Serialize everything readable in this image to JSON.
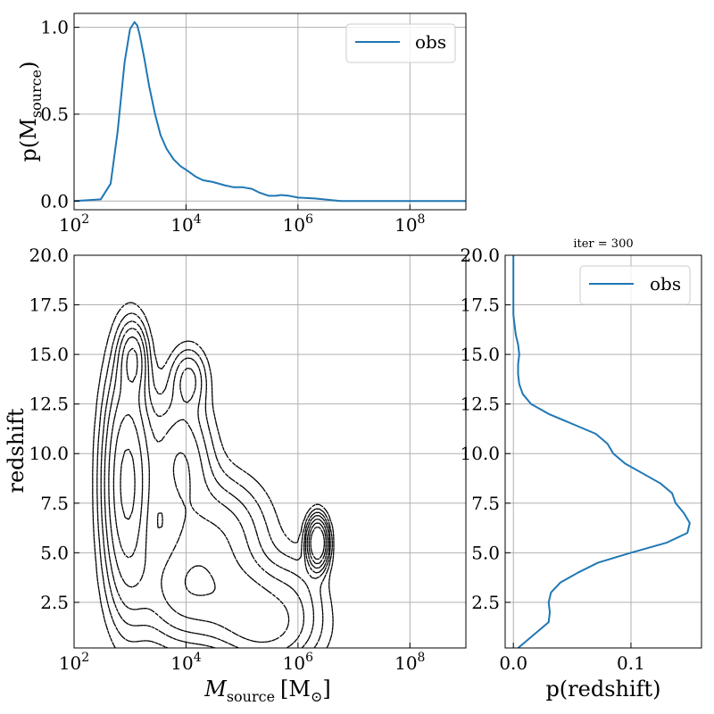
{
  "figure": {
    "title": "iter = 300"
  },
  "chart_data": [
    {
      "id": "top",
      "type": "line",
      "title": "",
      "xlabel": "",
      "ylabel": "p(M",
      "ylabel_sub": "source",
      "ylabel_close": ")",
      "xscale": "log",
      "xlim": [
        100,
        1000000000
      ],
      "ylim": [
        -0.05,
        1.08
      ],
      "xticks": [
        {
          "value": 100,
          "base": "10",
          "exp": "2"
        },
        {
          "value": 10000,
          "base": "10",
          "exp": "4"
        },
        {
          "value": 1000000,
          "base": "10",
          "exp": "6"
        },
        {
          "value": 100000000,
          "base": "10",
          "exp": "8"
        }
      ],
      "yticks": [
        {
          "value": 0.0,
          "label": "0.0"
        },
        {
          "value": 0.5,
          "label": "0.5"
        },
        {
          "value": 1.0,
          "label": "1.0"
        }
      ],
      "grid": true,
      "legend": {
        "position": "top-right",
        "entries": [
          "obs"
        ]
      },
      "series": [
        {
          "name": "obs",
          "color": "#1f77b4",
          "x": [
            100,
            300,
            450,
            600,
            800,
            1000,
            1200,
            1350,
            1500,
            1800,
            2200,
            2800,
            3500,
            4500,
            6000,
            8000,
            10000,
            15000,
            20000,
            30000,
            50000,
            70000,
            100000,
            150000,
            200000,
            300000,
            400000,
            500000,
            700000,
            1000000,
            2000000,
            4000000,
            6000000,
            10000000,
            100000000,
            1000000000
          ],
          "y": [
            0.0,
            0.01,
            0.1,
            0.4,
            0.8,
            0.99,
            1.03,
            1.01,
            0.95,
            0.82,
            0.66,
            0.5,
            0.38,
            0.3,
            0.24,
            0.2,
            0.18,
            0.14,
            0.12,
            0.11,
            0.09,
            0.08,
            0.08,
            0.07,
            0.05,
            0.03,
            0.03,
            0.035,
            0.03,
            0.02,
            0.015,
            0.005,
            0.0,
            0.0,
            0.0,
            0.0
          ]
        }
      ]
    },
    {
      "id": "main",
      "type": "contour",
      "xlabel": "M",
      "xlabel_sub": "source",
      "xlabel_unit": "[M",
      "xlabel_unit_sub": "⊙",
      "xlabel_close": "]",
      "ylabel": "redshift",
      "xscale": "log",
      "xlim": [
        100,
        1000000000
      ],
      "ylim": [
        0.2,
        20.0
      ],
      "xticks": [
        {
          "value": 100,
          "base": "10",
          "exp": "2"
        },
        {
          "value": 10000,
          "base": "10",
          "exp": "4"
        },
        {
          "value": 1000000,
          "base": "10",
          "exp": "6"
        },
        {
          "value": 100000000,
          "base": "10",
          "exp": "8"
        }
      ],
      "yticks": [
        {
          "value": 2.5,
          "label": "2.5"
        },
        {
          "value": 5.0,
          "label": "5.0"
        },
        {
          "value": 7.5,
          "label": "7.5"
        },
        {
          "value": 10.0,
          "label": "10.0"
        },
        {
          "value": 12.5,
          "label": "12.5"
        },
        {
          "value": 15.0,
          "label": "15.0"
        },
        {
          "value": 17.5,
          "label": "17.5"
        },
        {
          "value": 20.0,
          "label": "20.0"
        }
      ],
      "grid": true,
      "line_style": "dashed",
      "line_color": "#000000",
      "blobs": [
        {
          "cx": 2.95,
          "cy": 8.5,
          "sx": 0.26,
          "sy": 3.6,
          "w": 1.0
        },
        {
          "cx": 3.05,
          "cy": 14.8,
          "sx": 0.15,
          "sy": 1.1,
          "w": 0.55
        },
        {
          "cx": 3.9,
          "cy": 9.5,
          "sx": 0.35,
          "sy": 2.2,
          "w": 0.45
        },
        {
          "cx": 4.05,
          "cy": 13.8,
          "sx": 0.2,
          "sy": 1.0,
          "w": 0.3
        },
        {
          "cx": 4.0,
          "cy": 3.2,
          "sx": 0.55,
          "sy": 1.8,
          "w": 0.55
        },
        {
          "cx": 4.6,
          "cy": 6.0,
          "sx": 0.55,
          "sy": 1.8,
          "w": 0.35
        },
        {
          "cx": 5.1,
          "cy": 2.5,
          "sx": 0.5,
          "sy": 1.4,
          "w": 0.4
        },
        {
          "cx": 5.5,
          "cy": 1.0,
          "sx": 0.55,
          "sy": 1.2,
          "w": 0.35
        },
        {
          "cx": 6.35,
          "cy": 5.5,
          "sx": 0.11,
          "sy": 0.75,
          "w": 1.6
        },
        {
          "cx": 6.0,
          "cy": 3.0,
          "sx": 0.35,
          "sy": 1.4,
          "w": 0.15
        }
      ],
      "levels": [
        0.06,
        0.12,
        0.2,
        0.3,
        0.45,
        0.65,
        0.9
      ]
    },
    {
      "id": "right",
      "type": "line",
      "orientation": "vertical",
      "title": "iter = 300",
      "xlabel": "p(redshift)",
      "ylabel": "",
      "xlim": [
        -0.007,
        0.16
      ],
      "ylim": [
        0.2,
        20.0
      ],
      "xticks": [
        {
          "value": 0.0,
          "label": "0.0"
        },
        {
          "value": 0.1,
          "label": "0.1"
        }
      ],
      "yticks": [
        {
          "value": 2.5,
          "label": "2.5"
        },
        {
          "value": 5.0,
          "label": "5.0"
        },
        {
          "value": 7.5,
          "label": "7.5"
        },
        {
          "value": 10.0,
          "label": "10.0"
        },
        {
          "value": 12.5,
          "label": "12.5"
        },
        {
          "value": 15.0,
          "label": "15.0"
        },
        {
          "value": 17.5,
          "label": "17.5"
        },
        {
          "value": 20.0,
          "label": "20.0"
        }
      ],
      "grid": true,
      "legend": {
        "position": "top-right",
        "entries": [
          "obs"
        ]
      },
      "series": [
        {
          "name": "obs",
          "color": "#1f77b4",
          "z": [
            0.2,
            0.5,
            1.0,
            1.5,
            2.0,
            2.5,
            3.0,
            3.5,
            4.0,
            4.5,
            5.0,
            5.5,
            6.0,
            6.5,
            7.0,
            7.5,
            8.0,
            8.5,
            9.0,
            9.5,
            10.0,
            10.5,
            11.0,
            11.5,
            12.0,
            12.5,
            13.0,
            13.5,
            14.0,
            14.5,
            15.0,
            15.5,
            16.0,
            16.5,
            17.0,
            18.0,
            19.0,
            20.0
          ],
          "p": [
            0.004,
            0.01,
            0.02,
            0.03,
            0.031,
            0.03,
            0.032,
            0.04,
            0.055,
            0.072,
            0.1,
            0.13,
            0.148,
            0.15,
            0.145,
            0.138,
            0.135,
            0.125,
            0.11,
            0.095,
            0.085,
            0.08,
            0.07,
            0.05,
            0.03,
            0.015,
            0.008,
            0.005,
            0.004,
            0.004,
            0.005,
            0.004,
            0.002,
            0.001,
            0.0,
            0.0,
            0.0,
            0.0
          ]
        }
      ]
    }
  ]
}
